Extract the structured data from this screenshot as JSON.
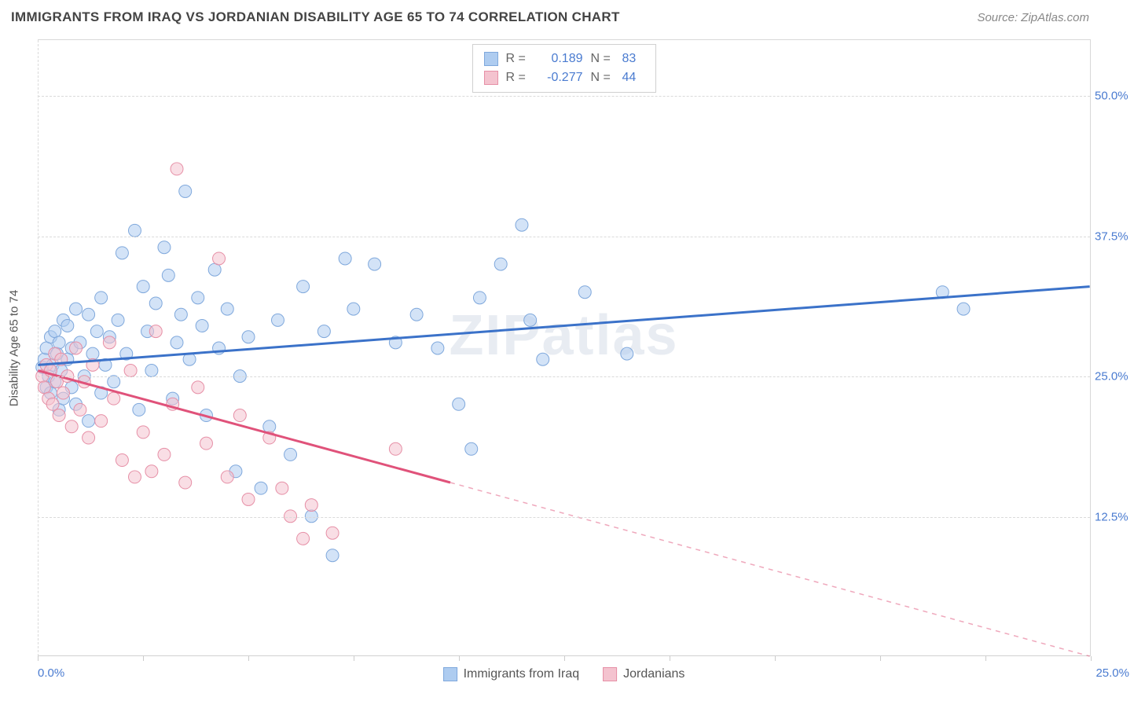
{
  "title": "IMMIGRANTS FROM IRAQ VS JORDANIAN DISABILITY AGE 65 TO 74 CORRELATION CHART",
  "source": "Source: ZipAtlas.com",
  "watermark": "ZIPatlas",
  "y_axis_label": "Disability Age 65 to 74",
  "chart": {
    "xlim": [
      0,
      25
    ],
    "ylim": [
      0,
      55
    ],
    "y_ticks": [
      12.5,
      25.0,
      37.5,
      50.0
    ],
    "y_tick_labels": [
      "12.5%",
      "25.0%",
      "37.5%",
      "50.0%"
    ],
    "x_ticks": [
      0,
      2.5,
      5,
      7.5,
      10,
      12.5,
      15,
      17.5,
      20,
      22.5,
      25
    ],
    "x_origin_label": "0.0%",
    "x_max_label": "25.0%",
    "grid_color": "#dadada",
    "background_color": "#ffffff",
    "marker_radius": 8,
    "marker_opacity": 0.55,
    "series": [
      {
        "name": "Immigrants from Iraq",
        "color_fill": "#aeccf0",
        "color_stroke": "#7fa8dc",
        "line_color": "#3b72c9",
        "R": "0.189",
        "N": "83",
        "trend": {
          "x1": 0,
          "y1": 26.0,
          "x2": 25,
          "y2": 33.0,
          "solid_until_x": 25
        },
        "points": [
          [
            0.1,
            25.8
          ],
          [
            0.15,
            26.5
          ],
          [
            0.2,
            24.0
          ],
          [
            0.2,
            27.5
          ],
          [
            0.25,
            25.0
          ],
          [
            0.3,
            28.5
          ],
          [
            0.3,
            23.5
          ],
          [
            0.35,
            26.0
          ],
          [
            0.4,
            29.0
          ],
          [
            0.4,
            24.5
          ],
          [
            0.45,
            27.0
          ],
          [
            0.5,
            22.0
          ],
          [
            0.5,
            28.0
          ],
          [
            0.55,
            25.5
          ],
          [
            0.6,
            30.0
          ],
          [
            0.6,
            23.0
          ],
          [
            0.7,
            26.5
          ],
          [
            0.7,
            29.5
          ],
          [
            0.8,
            24.0
          ],
          [
            0.8,
            27.5
          ],
          [
            0.9,
            31.0
          ],
          [
            0.9,
            22.5
          ],
          [
            1.0,
            28.0
          ],
          [
            1.1,
            25.0
          ],
          [
            1.2,
            30.5
          ],
          [
            1.2,
            21.0
          ],
          [
            1.3,
            27.0
          ],
          [
            1.4,
            29.0
          ],
          [
            1.5,
            23.5
          ],
          [
            1.5,
            32.0
          ],
          [
            1.6,
            26.0
          ],
          [
            1.7,
            28.5
          ],
          [
            1.8,
            24.5
          ],
          [
            1.9,
            30.0
          ],
          [
            2.0,
            36.0
          ],
          [
            2.1,
            27.0
          ],
          [
            2.3,
            38.0
          ],
          [
            2.4,
            22.0
          ],
          [
            2.5,
            33.0
          ],
          [
            2.6,
            29.0
          ],
          [
            2.7,
            25.5
          ],
          [
            2.8,
            31.5
          ],
          [
            3.0,
            36.5
          ],
          [
            3.1,
            34.0
          ],
          [
            3.2,
            23.0
          ],
          [
            3.3,
            28.0
          ],
          [
            3.4,
            30.5
          ],
          [
            3.5,
            41.5
          ],
          [
            3.6,
            26.5
          ],
          [
            3.8,
            32.0
          ],
          [
            3.9,
            29.5
          ],
          [
            4.0,
            21.5
          ],
          [
            4.2,
            34.5
          ],
          [
            4.3,
            27.5
          ],
          [
            4.5,
            31.0
          ],
          [
            4.7,
            16.5
          ],
          [
            4.8,
            25.0
          ],
          [
            5.0,
            28.5
          ],
          [
            5.3,
            15.0
          ],
          [
            5.5,
            20.5
          ],
          [
            5.7,
            30.0
          ],
          [
            6.0,
            18.0
          ],
          [
            6.3,
            33.0
          ],
          [
            6.5,
            12.5
          ],
          [
            6.8,
            29.0
          ],
          [
            7.0,
            9.0
          ],
          [
            7.3,
            35.5
          ],
          [
            7.5,
            31.0
          ],
          [
            8.0,
            35.0
          ],
          [
            8.5,
            28.0
          ],
          [
            9.0,
            30.5
          ],
          [
            9.5,
            27.5
          ],
          [
            10.0,
            22.5
          ],
          [
            10.3,
            18.5
          ],
          [
            10.5,
            32.0
          ],
          [
            11.0,
            35.0
          ],
          [
            11.5,
            38.5
          ],
          [
            11.7,
            30.0
          ],
          [
            12.0,
            26.5
          ],
          [
            13.0,
            32.5
          ],
          [
            14.0,
            27.0
          ],
          [
            21.5,
            32.5
          ],
          [
            22.0,
            31.0
          ]
        ]
      },
      {
        "name": "Jordanians",
        "color_fill": "#f4c3cf",
        "color_stroke": "#e68fa6",
        "line_color": "#e0527a",
        "R": "-0.277",
        "N": "44",
        "trend": {
          "x1": 0,
          "y1": 25.5,
          "x2": 25,
          "y2": 0.0,
          "solid_until_x": 9.8
        },
        "points": [
          [
            0.1,
            25.0
          ],
          [
            0.15,
            24.0
          ],
          [
            0.2,
            26.0
          ],
          [
            0.25,
            23.0
          ],
          [
            0.3,
            25.5
          ],
          [
            0.35,
            22.5
          ],
          [
            0.4,
            27.0
          ],
          [
            0.45,
            24.5
          ],
          [
            0.5,
            21.5
          ],
          [
            0.55,
            26.5
          ],
          [
            0.6,
            23.5
          ],
          [
            0.7,
            25.0
          ],
          [
            0.8,
            20.5
          ],
          [
            0.9,
            27.5
          ],
          [
            1.0,
            22.0
          ],
          [
            1.1,
            24.5
          ],
          [
            1.2,
            19.5
          ],
          [
            1.3,
            26.0
          ],
          [
            1.5,
            21.0
          ],
          [
            1.7,
            28.0
          ],
          [
            1.8,
            23.0
          ],
          [
            2.0,
            17.5
          ],
          [
            2.2,
            25.5
          ],
          [
            2.3,
            16.0
          ],
          [
            2.5,
            20.0
          ],
          [
            2.7,
            16.5
          ],
          [
            2.8,
            29.0
          ],
          [
            3.0,
            18.0
          ],
          [
            3.2,
            22.5
          ],
          [
            3.3,
            43.5
          ],
          [
            3.5,
            15.5
          ],
          [
            3.8,
            24.0
          ],
          [
            4.0,
            19.0
          ],
          [
            4.3,
            35.5
          ],
          [
            4.5,
            16.0
          ],
          [
            4.8,
            21.5
          ],
          [
            5.0,
            14.0
          ],
          [
            5.5,
            19.5
          ],
          [
            5.8,
            15.0
          ],
          [
            6.0,
            12.5
          ],
          [
            6.3,
            10.5
          ],
          [
            6.5,
            13.5
          ],
          [
            7.0,
            11.0
          ],
          [
            8.5,
            18.5
          ]
        ]
      }
    ]
  },
  "bottom_legend": [
    {
      "label": "Immigrants from Iraq",
      "fill": "#aeccf0",
      "stroke": "#7fa8dc"
    },
    {
      "label": "Jordanians",
      "fill": "#f4c3cf",
      "stroke": "#e68fa6"
    }
  ]
}
